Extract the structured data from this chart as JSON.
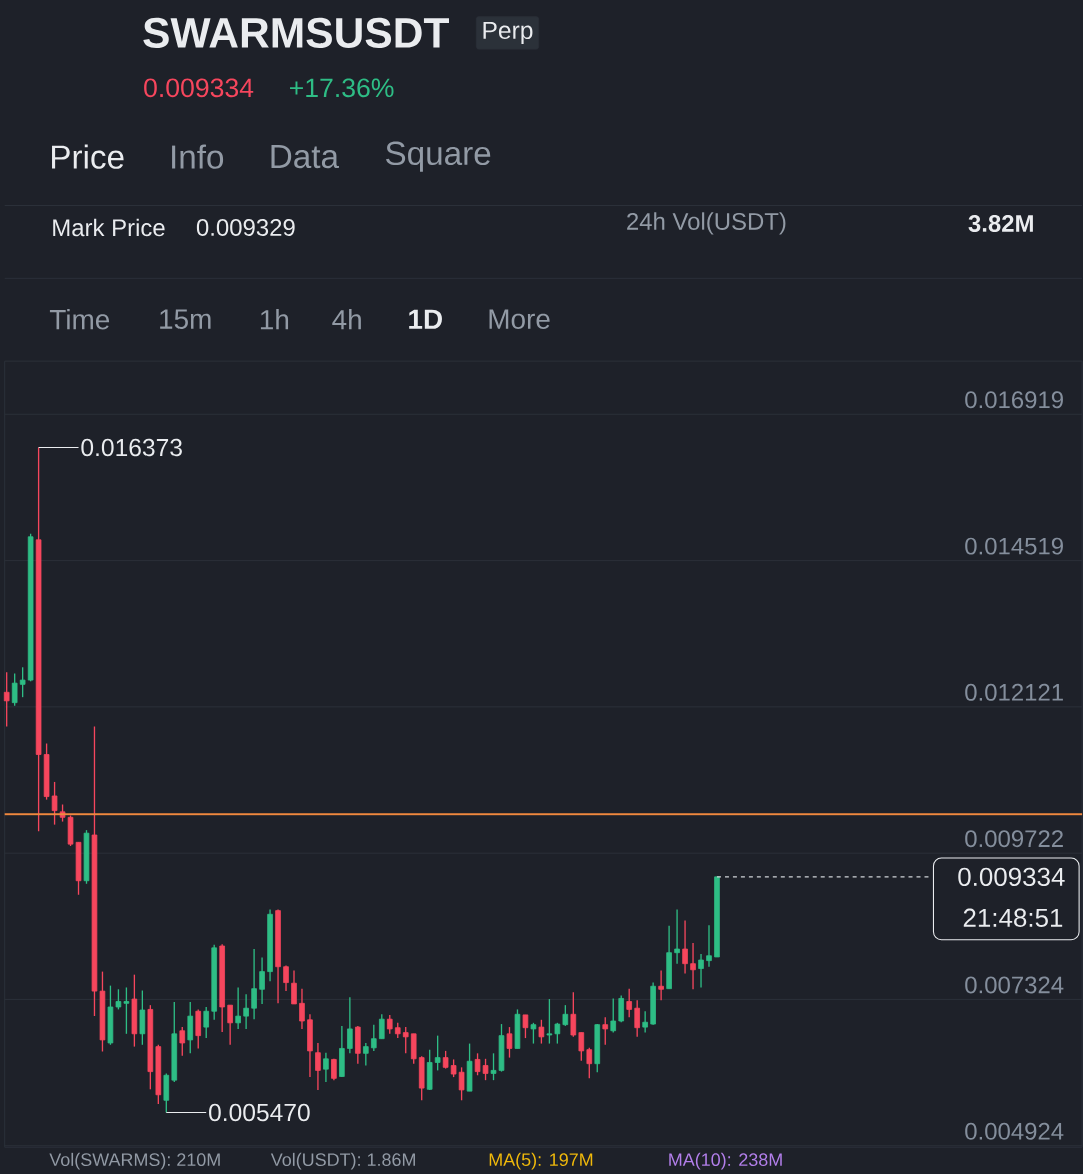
{
  "chart_data": {
    "type": "candlestick",
    "title": "SWARMSUSDT",
    "annotations": [
      "Perp",
      "0.009334",
      "+17.36%",
      "Price",
      "Info",
      "Data",
      "Square",
      "Mark Price",
      "0.009329",
      "24h Vol(USDT)",
      "3.82M",
      "Time",
      "15m",
      "1h",
      "4h",
      "1D",
      "More",
      "Vol(SWARMS): 210M",
      "Vol(USDT): 1.86M",
      "MA(5): 197M",
      "MA(10): 238M",
      "0.016373",
      "0.005470",
      "21:48:51"
    ],
    "categories": [
      null,
      null,
      null,
      null,
      null,
      null,
      null,
      null,
      null,
      null,
      null,
      null,
      null,
      null,
      null,
      null,
      null,
      null,
      null,
      null,
      null,
      null,
      null,
      null,
      null,
      null,
      null,
      null,
      null,
      null,
      null,
      null,
      null,
      null,
      null,
      null,
      null,
      null,
      null,
      null,
      null,
      null,
      null,
      null,
      null,
      null,
      null,
      null,
      null,
      null,
      null,
      null,
      null,
      null,
      null,
      null,
      null,
      null,
      null,
      null,
      null,
      null,
      null,
      null,
      null,
      null,
      null,
      null,
      null,
      null,
      null,
      null,
      null,
      null,
      null,
      null,
      null,
      null,
      null,
      null,
      null,
      null,
      null,
      null,
      null,
      null,
      null,
      null,
      null,
      null,
      null,
      null,
      null,
      null,
      null,
      null,
      null,
      null,
      null,
      null,
      null,
      null,
      null,
      null,
      null,
      null,
      null,
      null,
      null,
      null,
      null,
      null,
      null,
      null,
      null,
      null,
      null,
      null,
      null,
      null,
      null,
      null,
      null,
      null,
      null,
      null,
      null,
      null,
      null,
      null,
      null,
      null,
      null,
      null,
      null
    ],
    "ohlc": [
      [
        0.01236,
        0.01269,
        0.0118,
        0.01222
      ],
      [
        0.01219,
        0.01267,
        0.01214,
        0.01251
      ],
      [
        0.01249,
        0.01277,
        0.01228,
        0.01256
      ],
      [
        0.01256,
        0.01496,
        0.01254,
        0.01491
      ],
      [
        0.01486,
        0.016373,
        0.01008,
        0.01134
      ],
      [
        0.01134,
        0.01152,
        0.0106,
        0.01065
      ],
      [
        0.01066,
        0.01089,
        0.01019,
        0.01042
      ],
      [
        0.0104,
        0.01052,
        0.01024,
        0.01031
      ],
      [
        0.01031,
        0.01034,
        0.00984,
        0.00987
      ],
      [
        0.0099,
        0.0099,
        0.00904,
        0.00927
      ],
      [
        0.00927,
        0.0101,
        0.00922,
        0.01005
      ],
      [
        0.01002,
        0.0118,
        0.00705,
        0.00746
      ],
      [
        0.00746,
        0.00778,
        0.00647,
        0.00666
      ],
      [
        0.00661,
        0.00755,
        0.00658,
        0.0072
      ],
      [
        0.0072,
        0.00749,
        0.00716,
        0.00729
      ],
      [
        0.00726,
        0.00752,
        0.00676,
        0.00729
      ],
      [
        0.00733,
        0.00773,
        0.00655,
        0.00676
      ],
      [
        0.00676,
        0.00747,
        0.00658,
        0.00715
      ],
      [
        0.00716,
        0.00723,
        0.00585,
        0.00614
      ],
      [
        0.00655,
        0.00658,
        0.00561,
        0.00576
      ],
      [
        0.00567,
        0.00611,
        0.00547,
        0.00608
      ],
      [
        0.006,
        0.00728,
        0.00597,
        0.00676
      ],
      [
        0.00681,
        0.00687,
        0.0064,
        0.00661
      ],
      [
        0.00666,
        0.00728,
        0.00644,
        0.00705
      ],
      [
        0.00713,
        0.00716,
        0.00652,
        0.00673
      ],
      [
        0.00687,
        0.0072,
        0.00669,
        0.00713
      ],
      [
        0.00713,
        0.00822,
        0.00699,
        0.00817
      ],
      [
        0.0082,
        0.00823,
        0.00679,
        0.0072
      ],
      [
        0.00723,
        0.00723,
        0.00658,
        0.00694
      ],
      [
        0.00694,
        0.00752,
        0.00684,
        0.00705
      ],
      [
        0.00705,
        0.00741,
        0.00684,
        0.00718
      ],
      [
        0.00718,
        0.00815,
        0.007,
        0.0075
      ],
      [
        0.00749,
        0.00801,
        0.00725,
        0.00778
      ],
      [
        0.00778,
        0.0088,
        0.00762,
        0.00872
      ],
      [
        0.00878,
        0.0088,
        0.00726,
        0.00786
      ],
      [
        0.00786,
        0.00788,
        0.00746,
        0.0076
      ],
      [
        0.00759,
        0.0078,
        0.00725,
        0.00725
      ],
      [
        0.00726,
        0.0075,
        0.00684,
        0.00697
      ],
      [
        0.00699,
        0.00708,
        0.00605,
        0.00648
      ],
      [
        0.00645,
        0.00661,
        0.00584,
        0.00616
      ],
      [
        0.00618,
        0.00645,
        0.00597,
        0.00635
      ],
      [
        0.00634,
        0.00635,
        0.006,
        0.00603
      ],
      [
        0.00606,
        0.00689,
        0.00605,
        0.00652
      ],
      [
        0.00652,
        0.00736,
        0.00644,
        0.00684
      ],
      [
        0.00687,
        0.00689,
        0.00627,
        0.00644
      ],
      [
        0.00644,
        0.00661,
        0.00624,
        0.00655
      ],
      [
        0.00653,
        0.00691,
        0.00648,
        0.00668
      ],
      [
        0.00668,
        0.00708,
        0.00668,
        0.007
      ],
      [
        0.007,
        0.00707,
        0.00676,
        0.00684
      ],
      [
        0.00686,
        0.00694,
        0.00669,
        0.00676
      ],
      [
        0.00678,
        0.00687,
        0.00644,
        0.00671
      ],
      [
        0.00676,
        0.00676,
        0.00627,
        0.00635
      ],
      [
        0.00637,
        0.00639,
        0.00567,
        0.00587
      ],
      [
        0.00585,
        0.0065,
        0.00584,
        0.00629
      ],
      [
        0.00629,
        0.00673,
        0.00616,
        0.00637
      ],
      [
        0.00637,
        0.00648,
        0.00619,
        0.00621
      ],
      [
        0.00624,
        0.00634,
        0.00605,
        0.0061
      ],
      [
        0.00613,
        0.00621,
        0.00567,
        0.00584
      ],
      [
        0.00582,
        0.0066,
        0.00582,
        0.00631
      ],
      [
        0.00634,
        0.00644,
        0.00608,
        0.00614
      ],
      [
        0.00624,
        0.00635,
        0.006,
        0.00611
      ],
      [
        0.00611,
        0.00644,
        0.006,
        0.00616
      ],
      [
        0.00616,
        0.00692,
        0.00614,
        0.00673
      ],
      [
        0.00676,
        0.00687,
        0.00637,
        0.00652
      ],
      [
        0.00652,
        0.00716,
        0.00652,
        0.00708
      ],
      [
        0.00707,
        0.00707,
        0.00669,
        0.00686
      ],
      [
        0.00684,
        0.00694,
        0.0066,
        0.00691
      ],
      [
        0.00687,
        0.00699,
        0.0066,
        0.00671
      ],
      [
        0.00674,
        0.00733,
        0.0066,
        0.00676
      ],
      [
        0.00676,
        0.00694,
        0.0066,
        0.00692
      ],
      [
        0.00691,
        0.00723,
        0.00689,
        0.00708
      ],
      [
        0.00708,
        0.00744,
        0.00671,
        0.00674
      ],
      [
        0.00678,
        0.00678,
        0.00632,
        0.00648
      ],
      [
        0.0065,
        0.00653,
        0.00603,
        0.00627
      ],
      [
        0.00627,
        0.00692,
        0.00613,
        0.00691
      ],
      [
        0.00691,
        0.00703,
        0.00658,
        0.00684
      ],
      [
        0.00681,
        0.00734,
        0.00678,
        0.00697
      ],
      [
        0.00697,
        0.00739,
        0.00695,
        0.00734
      ],
      [
        0.00729,
        0.0075,
        0.00703,
        0.00716
      ],
      [
        0.00718,
        0.00731,
        0.00671,
        0.00686
      ],
      [
        0.00687,
        0.00713,
        0.00678,
        0.00695
      ],
      [
        0.00692,
        0.0076,
        0.00691,
        0.00754
      ],
      [
        0.00754,
        0.0078,
        0.00731,
        0.00749
      ],
      [
        0.0075,
        0.00853,
        0.0075,
        0.00809
      ],
      [
        0.00809,
        0.0088,
        0.00791,
        0.00815
      ],
      [
        0.00815,
        0.00862,
        0.00775,
        0.00791
      ],
      [
        0.00791,
        0.00825,
        0.00749,
        0.00781
      ],
      [
        0.00783,
        0.00807,
        0.00752,
        0.00797
      ],
      [
        0.00796,
        0.00854,
        0.00786,
        0.00804
      ],
      [
        0.00802,
        0.009334,
        0.00802,
        0.009334
      ],
      null,
      null,
      null,
      null,
      null,
      null,
      null,
      null,
      null,
      null,
      null,
      null,
      null,
      null,
      null,
      null,
      null,
      null,
      null,
      null,
      null,
      null,
      null,
      null,
      null,
      null,
      null,
      null,
      null,
      null,
      null,
      null,
      null,
      null,
      null,
      null,
      null,
      null,
      null,
      null,
      null,
      null,
      null,
      null,
      null
    ],
    "ylim": [
      0.0049,
      0.01779
    ],
    "yticks": [
      0.004924,
      0.007324,
      0.009722,
      0.012121,
      0.014519,
      0.016919
    ],
    "grid": "y",
    "ref_lines": [
      {
        "axis": "y",
        "value": 0.01036,
        "color": "#f0883e",
        "line_style": "solid"
      },
      {
        "axis": "y",
        "value": 0.009334,
        "label": "0.009334",
        "color": "#d0d3d8",
        "line_style": "dashed"
      }
    ]
  }
}
